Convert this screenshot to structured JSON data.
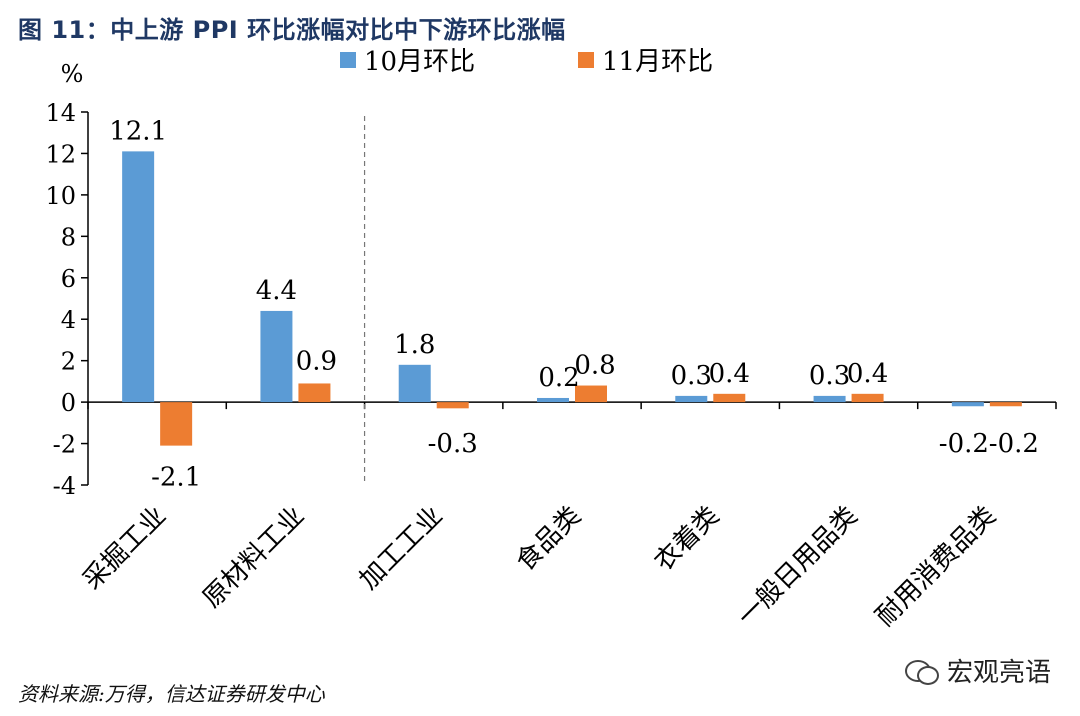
{
  "figure": {
    "title": "图 11：中上游 PPI 环比涨幅对比中下游环比涨幅",
    "source": "资料来源:万得，信达证券研发中心",
    "watermark": "宏观亮语"
  },
  "chart_data": {
    "type": "bar",
    "title": "",
    "ylabel": "%",
    "xlabel": "",
    "ylim": [
      -4,
      14
    ],
    "yticks": [
      -4,
      -2,
      0,
      2,
      4,
      6,
      8,
      10,
      12,
      14
    ],
    "categories": [
      "采掘工业",
      "原材料工业",
      "加工工业",
      "食品类",
      "衣着类",
      "一般日用品类",
      "耐用消费品类"
    ],
    "series": [
      {
        "name": "10月环比",
        "color": "#5b9bd5",
        "values": [
          12.1,
          4.4,
          1.8,
          0.2,
          0.3,
          0.3,
          -0.2
        ],
        "labels": [
          "12.1",
          "4.4",
          "1.8",
          "0.2",
          "0.3",
          "0.3",
          "-0.2"
        ]
      },
      {
        "name": "11月环比",
        "color": "#ed7d31",
        "values": [
          -2.1,
          0.9,
          -0.3,
          0.8,
          0.4,
          0.4,
          -0.2
        ],
        "labels": [
          "-2.1",
          "0.9",
          "-0.3",
          "0.8",
          "0.4",
          "0.4",
          "-0.2"
        ]
      }
    ],
    "legend": "top",
    "grid": false,
    "divider_after_category": 1
  }
}
